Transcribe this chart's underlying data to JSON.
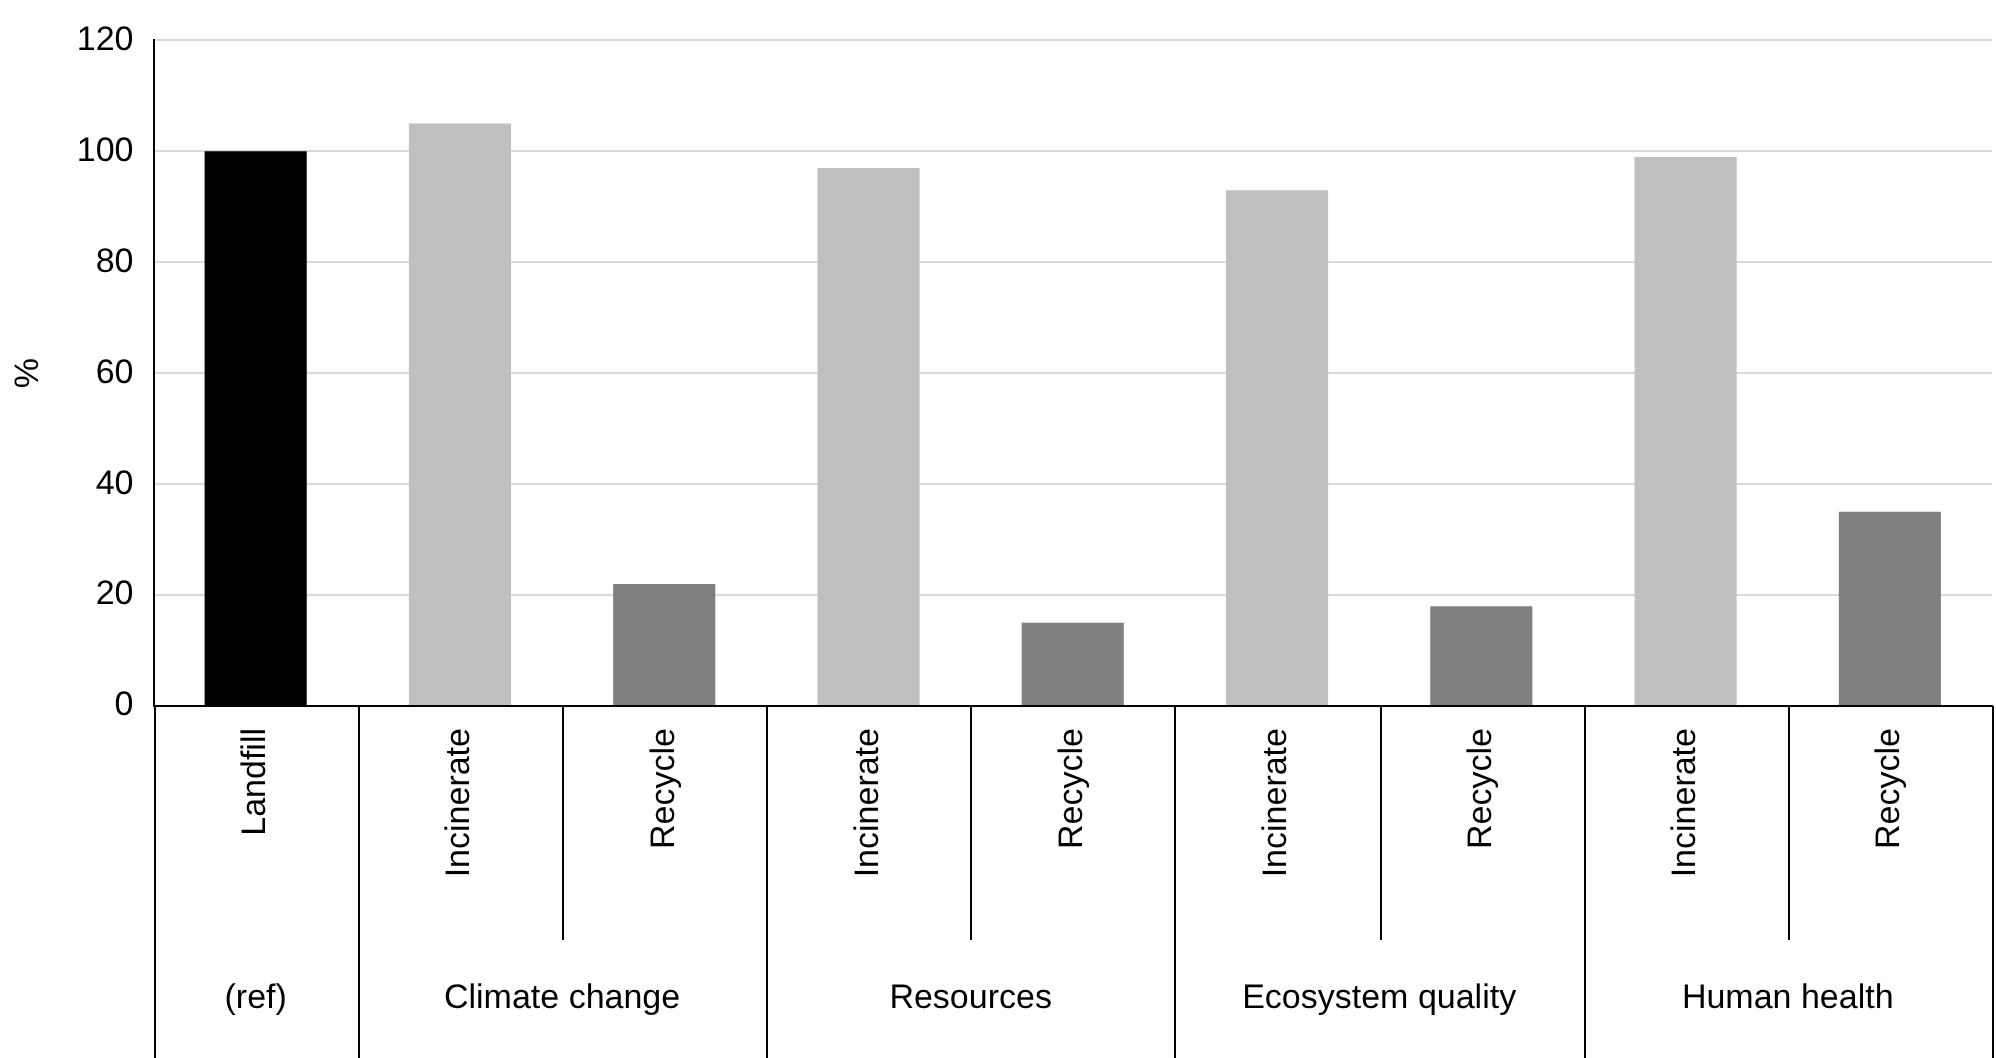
{
  "chart_data": {
    "type": "bar",
    "ylabel": "%",
    "categories": [
      "Landfill",
      "Incinerate",
      "Recycle",
      "Incinerate",
      "Recycle",
      "Incinerate",
      "Recycle",
      "Incinerate",
      "Recycle"
    ],
    "values": [
      100,
      105,
      22,
      97,
      15,
      93,
      18,
      99,
      35
    ],
    "colors": [
      "#000000",
      "#bfbfbf",
      "#808080",
      "#bfbfbf",
      "#808080",
      "#bfbfbf",
      "#808080",
      "#bfbfbf",
      "#808080"
    ],
    "annotations": [
      "(ref)",
      "Climate change",
      "Resources",
      "Ecosystem quality",
      "Human health"
    ],
    "ylim": [
      0,
      120
    ],
    "yticks": [
      0,
      20,
      40,
      60,
      80,
      100,
      120
    ],
    "grid": "y"
  }
}
